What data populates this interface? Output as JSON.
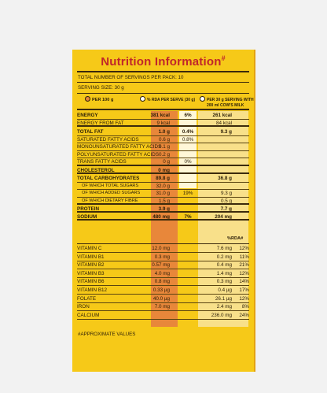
{
  "title": "Nutrition Information",
  "title_mark": "#",
  "servings_per_pack": "TOTAL NUMBER OF SERVINGS PER PACK: 10",
  "serving_size": "SERVING SIZE: 30 g",
  "columns": {
    "per100": "PER 100 g",
    "rda": "% RDA PER SERVE (30 g)",
    "milk_line1": "PER 30 g SERVING WITH",
    "milk_line2": "200 ml COW'S MILK",
    "pct_rda": "%RDA#"
  },
  "rows_top": [
    {
      "label": "ENERGY",
      "bold": true,
      "per100": "381 kcal",
      "rda": "6%",
      "milk": "261 kcal",
      "milk_rda": ""
    },
    {
      "label": "ENERGY FROM FAT",
      "bold": false,
      "per100": "9 kcal",
      "rda": "",
      "milk": "84 kcal",
      "milk_rda": ""
    },
    {
      "label": "TOTAL FAT",
      "bold": true,
      "per100": "1.0 g",
      "rda": "0.4%",
      "milk": "9.3 g",
      "milk_rda": ""
    },
    {
      "label": "SATURATED FATTY ACIDS",
      "bold": false,
      "per100": "0.6 g",
      "rda": "0.8%",
      "milk": "",
      "milk_rda": ""
    },
    {
      "label": "MONOUNSATURATED FATTY ACIDS",
      "bold": false,
      "per100": "0.1 g",
      "rda": "",
      "milk": "",
      "milk_rda": ""
    },
    {
      "label": "POLYUNSATURATED FATTY ACIDS",
      "bold": false,
      "per100": "0.2 g",
      "rda": "",
      "milk": "",
      "milk_rda": ""
    },
    {
      "label": "TRANS FATTY ACIDS",
      "bold": false,
      "per100": "0 g",
      "rda": "0%",
      "milk": "",
      "milk_rda": ""
    },
    {
      "label": "CHOLESTEROL",
      "bold": true,
      "per100": "0 mg",
      "rda": "",
      "milk": "",
      "milk_rda": ""
    },
    {
      "label": "TOTAL CARBOHYDRATES",
      "bold": true,
      "per100": "89.8 g",
      "rda": "",
      "milk": "36.8 g",
      "milk_rda": ""
    },
    {
      "label": "OF WHICH TOTAL SUGARS",
      "sub": true,
      "per100": "32.0 g",
      "rda": "",
      "milk": "",
      "milk_rda": ""
    },
    {
      "label": "OF WHICH ADDED SUGARS",
      "sub": true,
      "per100": "31.0 g",
      "rda": "19%",
      "milk": "9.3 g",
      "milk_rda": ""
    },
    {
      "label": "OF WHICH DIETARY FIBRE",
      "sub": true,
      "per100": "1.5 g",
      "rda": "",
      "milk": "0.5 g",
      "milk_rda": ""
    },
    {
      "label": "PROTEIN",
      "bold": true,
      "per100": "3.9 g",
      "rda": "",
      "milk": "7.7 g",
      "milk_rda": ""
    },
    {
      "label": "SODIUM",
      "bold": true,
      "per100": "480 mg",
      "rda": "7%",
      "milk": "204 mg",
      "milk_rda": ""
    }
  ],
  "rows_vit": [
    {
      "label": "VITAMIN C",
      "per100": "12.0 mg",
      "milk": "7.6 mg",
      "milk_rda": "12%"
    },
    {
      "label": "VITAMIN B1",
      "per100": "0.3 mg",
      "milk": "0.2 mg",
      "milk_rda": "11%"
    },
    {
      "label": "VITAMIN B2",
      "per100": "0.57 mg",
      "milk": "0.4 mg",
      "milk_rda": "21%"
    },
    {
      "label": "VITAMIN B3",
      "per100": "4.0 mg",
      "milk": "1.4 mg",
      "milk_rda": "12%"
    },
    {
      "label": "VITAMIN B6",
      "per100": "0.8 mg",
      "milk": "0.3 mg",
      "milk_rda": "14%"
    },
    {
      "label": "VITAMIN B12",
      "per100": "0.33 µg",
      "milk": "0.4 µg",
      "milk_rda": "17%"
    },
    {
      "label": "FOLATE",
      "per100": "40.0 µg",
      "milk": "26.1 µg",
      "milk_rda": "12%"
    },
    {
      "label": "IRON",
      "per100": "7.0 mg",
      "milk": "2.4 mg",
      "milk_rda": "8%"
    },
    {
      "label": "CALCIUM",
      "per100": "",
      "milk": "236.0 mg",
      "milk_rda": "24%"
    }
  ],
  "footnote": "#APPROXIMATE VALUES",
  "colors": {
    "card": "#f6c918",
    "per100_col": "#e8873a",
    "title": "#c0262b"
  }
}
